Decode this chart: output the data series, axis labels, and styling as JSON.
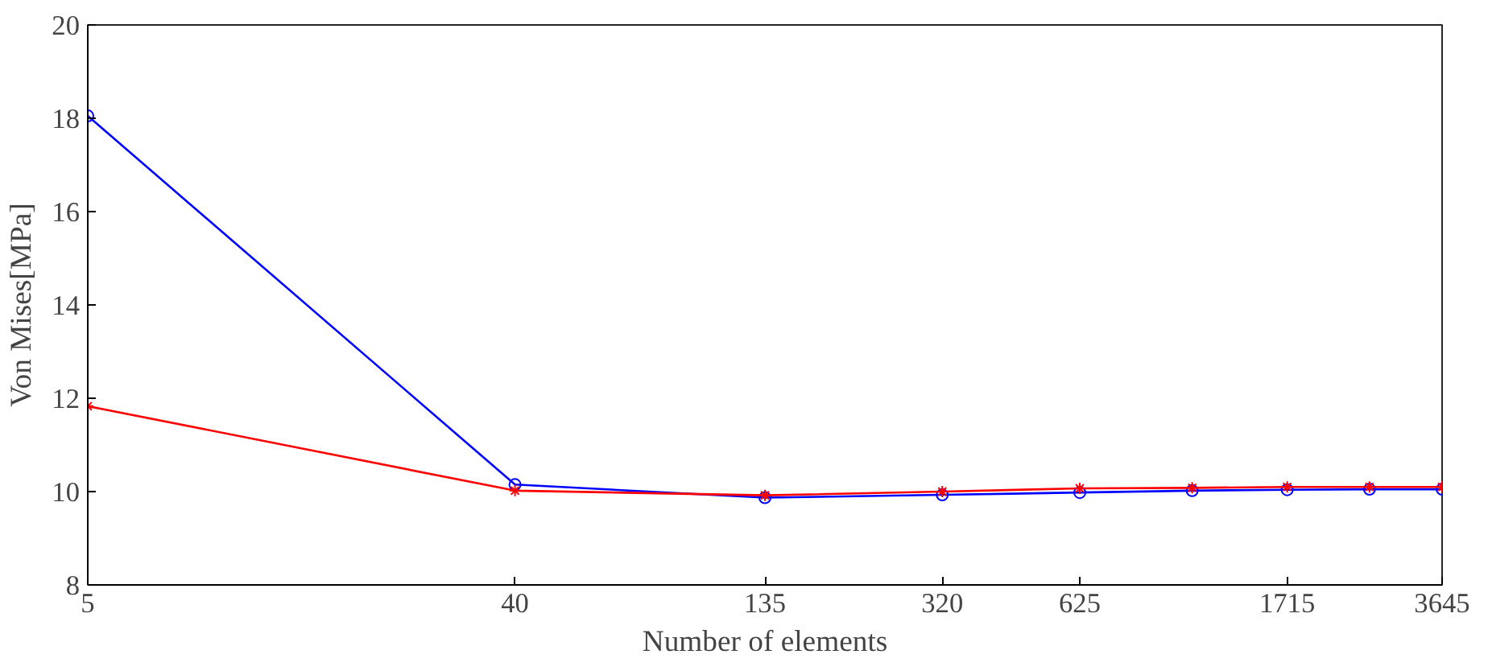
{
  "chart_data": {
    "type": "line",
    "xlabel": "Number of elements",
    "ylabel": "Von Mises[MPa]",
    "log": "x",
    "x": [
      5,
      40,
      135,
      320,
      625,
      1080,
      1715,
      2560,
      3645
    ],
    "series": [
      {
        "color": "#0000ff",
        "marker": "circle",
        "values": [
          18.05,
          10.15,
          9.87,
          9.93,
          9.98,
          10.02,
          10.04,
          10.05,
          10.05
        ]
      },
      {
        "color": "#ff0000",
        "marker": "cross",
        "values": [
          11.83,
          10.02,
          9.92,
          10.0,
          10.07,
          10.08,
          10.1,
          10.1,
          10.1
        ]
      }
    ],
    "xlim": [
      5,
      3645
    ],
    "xticks": [
      5,
      40,
      135,
      320,
      625,
      1715,
      3645
    ],
    "ylim": [
      8,
      20
    ],
    "yticks": [
      8,
      10,
      12,
      14,
      16,
      18,
      20
    ],
    "grid": false
  }
}
